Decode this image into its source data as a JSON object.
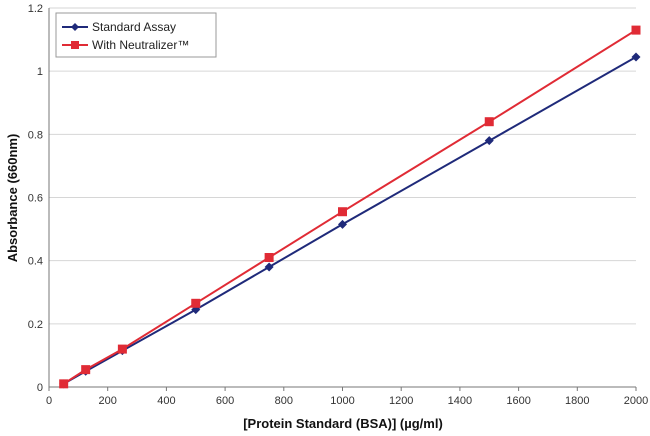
{
  "chart_data": {
    "type": "line",
    "title": "",
    "xlabel": "[Protein Standard (BSA)] (µg/ml)",
    "ylabel": "Absorbance (660nm)",
    "xlim": [
      0,
      2000
    ],
    "ylim": [
      0,
      1.2
    ],
    "x_ticks": [
      0,
      200,
      400,
      600,
      800,
      1000,
      1200,
      1400,
      1600,
      1800,
      2000
    ],
    "y_ticks": [
      0,
      0.2,
      0.4,
      0.6,
      0.8,
      1,
      1.2
    ],
    "y_tick_labels": [
      "0",
      "0.2",
      "0.4",
      "0.6",
      "0.8",
      "1",
      "1.2"
    ],
    "grid": "horizontal",
    "legend_position": "top-left",
    "series": [
      {
        "name": "Standard Assay",
        "color": "#1f2a7a",
        "marker": "diamond",
        "x": [
          50,
          125,
          250,
          500,
          750,
          1000,
          1500,
          2000
        ],
        "y": [
          0.01,
          0.05,
          0.115,
          0.245,
          0.38,
          0.515,
          0.78,
          1.045
        ]
      },
      {
        "name": "With Neutralizer™",
        "color": "#e02b35",
        "marker": "square",
        "x": [
          50,
          125,
          250,
          500,
          750,
          1000,
          1500,
          2000
        ],
        "y": [
          0.01,
          0.055,
          0.12,
          0.265,
          0.41,
          0.555,
          0.84,
          1.13
        ]
      }
    ]
  }
}
